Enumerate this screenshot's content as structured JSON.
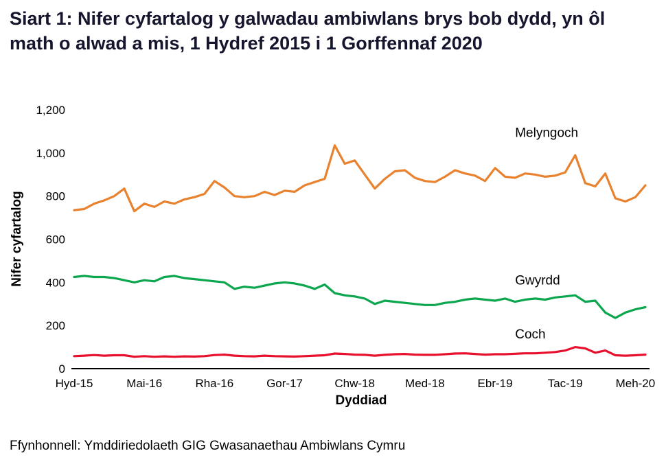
{
  "title": "Siart 1: Nifer cyfartalog y galwadau ambiwlans brys bob dydd, yn ôl math o alwad a mis, 1 Hydref 2015 i 1 Gorffennaf 2020",
  "footer": "Ffynhonnell: Ymddiriedolaeth GIG Gwasanaethau Ambiwlans Cymru",
  "chart_data": {
    "type": "line",
    "title": "Siart 1: Nifer cyfartalog y galwadau ambiwlans brys bob dydd, yn ôl math o alwad a mis, 1 Hydref 2015 i 1 Gorffennaf 2020",
    "xlabel": "Dyddiad",
    "ylabel": "Nifer cyfartalog",
    "ylim": [
      0,
      1200
    ],
    "ytick_step": 200,
    "grid": false,
    "legend_position": "inline-labels",
    "x_tick_labels": [
      "Hyd-15",
      "Mai-16",
      "Rha-16",
      "Gor-17",
      "Chw-18",
      "Med-18",
      "Ebr-19",
      "Tac-19",
      "Meh-20"
    ],
    "x_tick_indices": [
      0,
      7,
      14,
      21,
      28,
      35,
      42,
      49,
      56
    ],
    "x_range_note": "monthly points from Hyd-15 (Oct 2015) to Gor-20 (Jul 2020), 58 points",
    "series": [
      {
        "name": "Melyngoch",
        "color": "#e8822e",
        "label_anchor": {
          "x_index": 44,
          "y_value": 1075
        },
        "values": [
          735,
          740,
          765,
          780,
          800,
          835,
          730,
          765,
          750,
          775,
          765,
          785,
          795,
          810,
          870,
          840,
          800,
          795,
          800,
          820,
          805,
          825,
          820,
          850,
          865,
          880,
          1035,
          950,
          965,
          900,
          835,
          880,
          915,
          920,
          885,
          870,
          865,
          890,
          920,
          905,
          895,
          870,
          930,
          890,
          885,
          905,
          900,
          890,
          895,
          910,
          990,
          860,
          845,
          905,
          790,
          775,
          795,
          850
        ]
      },
      {
        "name": "Gwyrdd",
        "color": "#0ca64e",
        "label_anchor": {
          "x_index": 44,
          "y_value": 390
        },
        "values": [
          425,
          430,
          425,
          425,
          420,
          410,
          400,
          410,
          405,
          425,
          430,
          420,
          415,
          410,
          405,
          400,
          370,
          380,
          375,
          385,
          395,
          400,
          395,
          385,
          370,
          390,
          350,
          340,
          335,
          325,
          300,
          315,
          310,
          305,
          300,
          295,
          295,
          305,
          310,
          320,
          325,
          320,
          315,
          325,
          310,
          320,
          325,
          320,
          330,
          335,
          340,
          310,
          315,
          260,
          235,
          260,
          275,
          285
        ]
      },
      {
        "name": "Coch",
        "color": "#e8112d",
        "label_anchor": {
          "x_index": 44,
          "y_value": 140
        },
        "values": [
          58,
          60,
          63,
          60,
          62,
          62,
          55,
          58,
          55,
          57,
          55,
          57,
          56,
          58,
          63,
          65,
          60,
          58,
          57,
          60,
          58,
          57,
          56,
          58,
          60,
          62,
          70,
          68,
          65,
          64,
          60,
          64,
          67,
          68,
          65,
          64,
          64,
          67,
          70,
          71,
          68,
          65,
          67,
          67,
          69,
          71,
          71,
          74,
          77,
          84,
          100,
          94,
          74,
          84,
          62,
          60,
          62,
          65
        ]
      }
    ]
  }
}
